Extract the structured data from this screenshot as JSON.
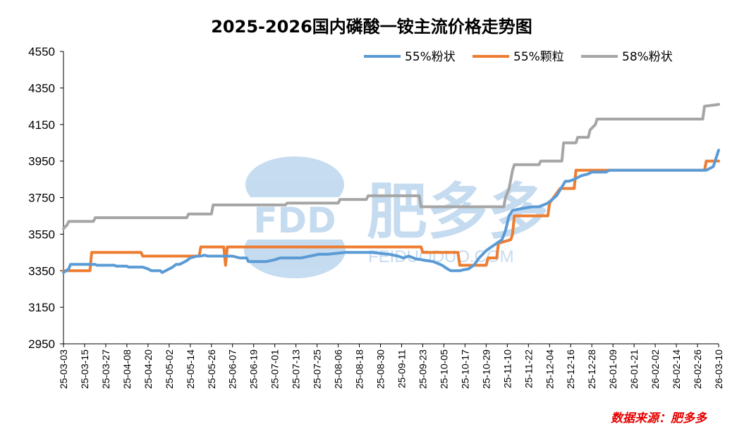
{
  "chart_data": {
    "type": "line",
    "title": "2025-2026国内磷酸一铵主流价格走势图",
    "xlabel": "",
    "ylabel": "",
    "ylim": [
      2950,
      4550
    ],
    "yticks": [
      2950,
      3150,
      3350,
      3550,
      3750,
      3950,
      4150,
      4350,
      4550
    ],
    "xticks": [
      "25-03-03",
      "25-03-15",
      "25-03-27",
      "25-04-08",
      "25-04-20",
      "25-05-02",
      "25-05-14",
      "25-05-26",
      "25-06-07",
      "25-06-19",
      "25-07-01",
      "25-07-13",
      "25-07-25",
      "25-08-06",
      "25-08-18",
      "25-08-30",
      "25-09-11",
      "25-09-23",
      "25-10-05",
      "25-10-17",
      "25-10-29",
      "25-11-10",
      "25-11-22",
      "25-12-04",
      "25-12-16",
      "25-12-28",
      "26-01-09",
      "26-01-21",
      "26-02-02",
      "26-02-14",
      "26-02-26",
      "26-03-10"
    ],
    "x_range_days": [
      0,
      372
    ],
    "legend_position": "top-right",
    "grid": false,
    "series": [
      {
        "name": "55%粉状",
        "color": "#5b9bd5",
        "day": [
          0,
          3,
          4,
          18,
          19,
          29,
          30,
          36,
          37,
          45,
          48,
          50,
          55,
          56,
          58,
          60,
          62,
          64,
          66,
          70,
          72,
          76,
          78,
          80,
          82,
          96,
          100,
          104,
          105,
          115,
          120,
          123,
          125,
          135,
          140,
          145,
          150,
          160,
          165,
          175,
          180,
          185,
          190,
          193,
          196,
          200,
          210,
          215,
          218,
          220,
          225,
          227,
          230,
          233,
          236,
          240,
          243,
          246,
          249,
          251,
          253,
          255,
          260,
          266,
          270,
          275,
          280,
          285,
          287,
          290,
          294,
          298,
          300,
          308,
          310,
          315,
          340,
          350,
          362,
          365,
          369,
          372
        ],
        "values": [
          3340,
          3360,
          3385,
          3385,
          3380,
          3380,
          3375,
          3375,
          3370,
          3370,
          3360,
          3350,
          3350,
          3340,
          3350,
          3360,
          3370,
          3385,
          3385,
          3405,
          3420,
          3430,
          3430,
          3435,
          3430,
          3430,
          3420,
          3420,
          3400,
          3400,
          3410,
          3420,
          3420,
          3420,
          3430,
          3440,
          3440,
          3450,
          3450,
          3450,
          3445,
          3440,
          3430,
          3420,
          3430,
          3415,
          3400,
          3380,
          3360,
          3350,
          3350,
          3355,
          3360,
          3380,
          3420,
          3460,
          3480,
          3500,
          3520,
          3570,
          3650,
          3680,
          3690,
          3700,
          3700,
          3720,
          3760,
          3840,
          3840,
          3850,
          3870,
          3880,
          3890,
          3890,
          3900,
          3900,
          3900,
          3900,
          3900,
          3900,
          3920,
          4010
        ]
      },
      {
        "name": "55%颗粒",
        "color": "#ed7d31",
        "day": [
          0,
          15,
          16,
          44,
          45,
          77,
          78,
          91,
          92,
          93,
          94,
          203,
          204,
          224,
          225,
          240,
          241,
          246,
          247,
          254,
          255,
          256,
          257,
          275,
          276,
          282,
          283,
          290,
          291,
          364,
          365,
          372
        ],
        "values": [
          3350,
          3350,
          3450,
          3450,
          3430,
          3430,
          3480,
          3480,
          3380,
          3480,
          3480,
          3480,
          3450,
          3450,
          3380,
          3380,
          3420,
          3420,
          3500,
          3520,
          3550,
          3650,
          3650,
          3650,
          3720,
          3800,
          3800,
          3800,
          3900,
          3900,
          3950,
          3950
        ]
      },
      {
        "name": "58%粉状",
        "color": "#a5a5a5",
        "day": [
          0,
          2,
          3,
          17,
          18,
          70,
          71,
          84,
          85,
          126,
          127,
          156,
          157,
          172,
          173,
          202,
          203,
          250,
          251,
          253,
          254,
          255,
          256,
          270,
          271,
          283,
          284,
          291,
          292,
          298,
          299,
          302,
          303,
          363,
          364,
          372
        ],
        "values": [
          3580,
          3600,
          3620,
          3620,
          3640,
          3640,
          3660,
          3660,
          3710,
          3710,
          3720,
          3720,
          3740,
          3740,
          3760,
          3760,
          3700,
          3700,
          3750,
          3800,
          3850,
          3900,
          3930,
          3930,
          3950,
          3950,
          4050,
          4050,
          4080,
          4080,
          4120,
          4150,
          4180,
          4180,
          4250,
          4260
        ]
      }
    ]
  },
  "watermark": {
    "logo_text": "FDD",
    "brand_text": "肥多多",
    "url_text": "FEIDUODUO.COM"
  },
  "source_note": "数据来源：肥多多",
  "colors": {
    "axis": "#000000",
    "source": "#e60000",
    "watermark": "#5b9bd5"
  }
}
